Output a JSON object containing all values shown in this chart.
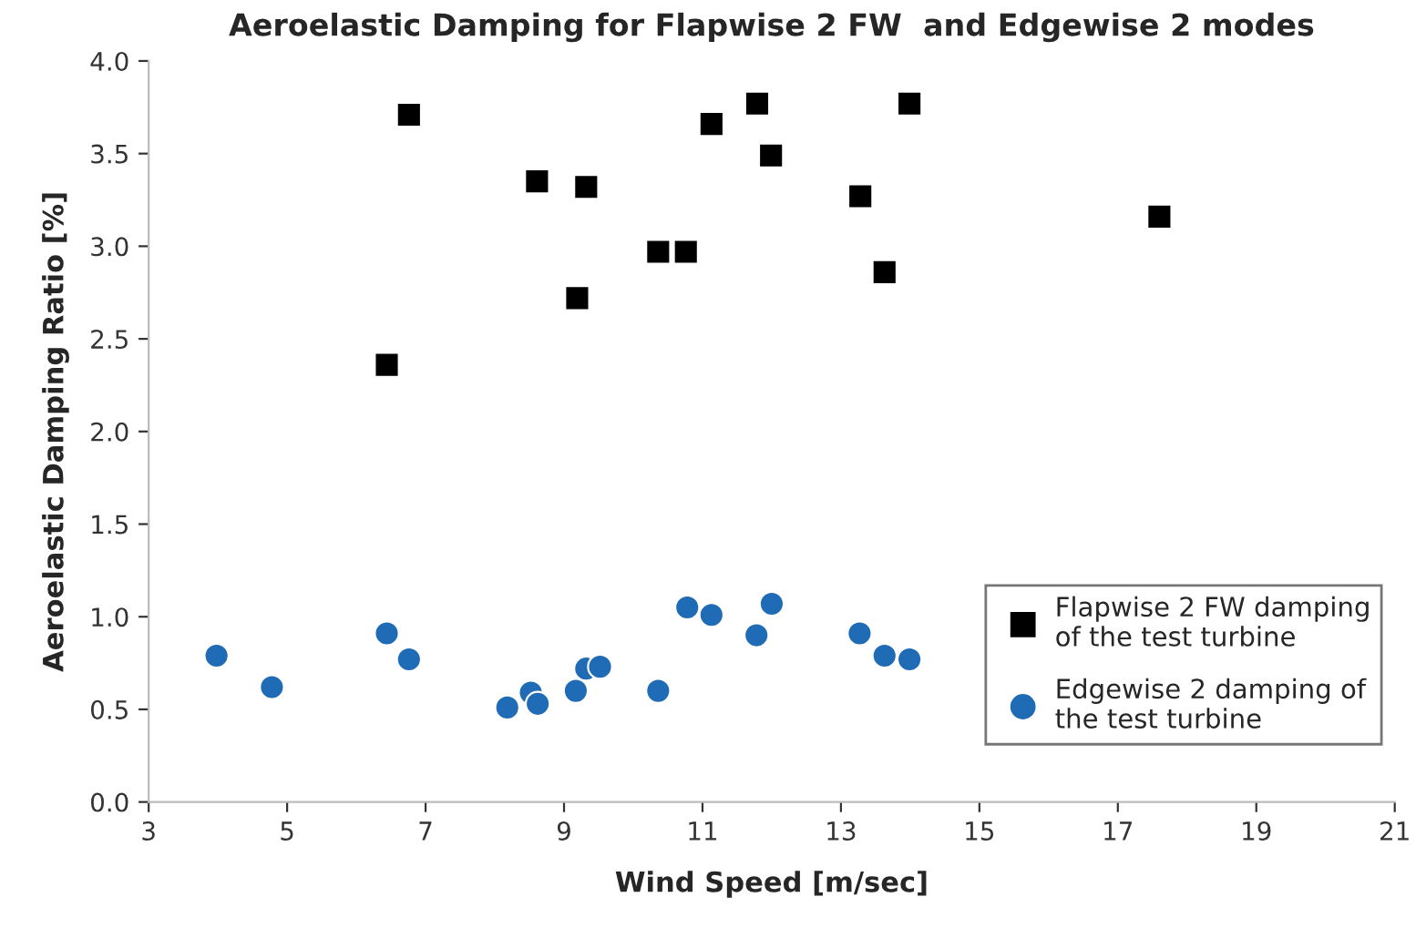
{
  "chart_data": {
    "type": "scatter",
    "title": "Aeroelastic Damping for Flapwise 2 FW  and Edgewise 2 modes",
    "xlabel": "Wind Speed [m/sec]",
    "ylabel": "Aeroelastic Damping Ratio [%]",
    "xlim": [
      3,
      21
    ],
    "xticks": [
      3,
      5,
      7,
      9,
      11,
      13,
      15,
      17,
      19,
      21
    ],
    "ylim": [
      0,
      4
    ],
    "yticks": [
      {
        "value": 0,
        "label": "0.0"
      },
      {
        "value": 0.5,
        "label": "0.5"
      },
      {
        "value": 1,
        "label": "1.0"
      },
      {
        "value": 1.5,
        "label": "1.5"
      },
      {
        "value": 2,
        "label": "2.0"
      },
      {
        "value": 2.5,
        "label": "2.5"
      },
      {
        "value": 3,
        "label": "3.0"
      },
      {
        "value": 3.5,
        "label": "3.5"
      },
      {
        "value": 4,
        "label": "4.0"
      }
    ],
    "grid": false,
    "legend": "bottom right",
    "series": [
      {
        "name": "Flapwise 2 FW damping of the test turbine",
        "color": "#000000",
        "marker": "square",
        "x": [
          6.44,
          6.76,
          8.61,
          9.32,
          9.19,
          10.36,
          10.76,
          11.13,
          11.79,
          11.99,
          13.28,
          13.63,
          13.99,
          17.6
        ],
        "values": [
          2.36,
          3.71,
          3.35,
          3.32,
          2.72,
          2.97,
          2.97,
          3.66,
          3.77,
          3.49,
          3.27,
          2.86,
          3.77,
          3.16
        ]
      },
      {
        "name": "Edgewise 2 damping of the test turbine",
        "color": "#1f6bb5",
        "marker": "circle",
        "x": [
          3.98,
          4.78,
          6.44,
          6.76,
          8.18,
          8.52,
          8.62,
          9.17,
          9.32,
          9.52,
          10.36,
          10.78,
          11.13,
          11.78,
          12.0,
          13.27,
          13.63,
          13.99
        ],
        "values": [
          0.79,
          0.62,
          0.91,
          0.77,
          0.51,
          0.59,
          0.53,
          0.6,
          0.72,
          0.73,
          0.6,
          1.05,
          1.01,
          0.9,
          1.07,
          0.91,
          0.79,
          0.77
        ]
      }
    ]
  }
}
